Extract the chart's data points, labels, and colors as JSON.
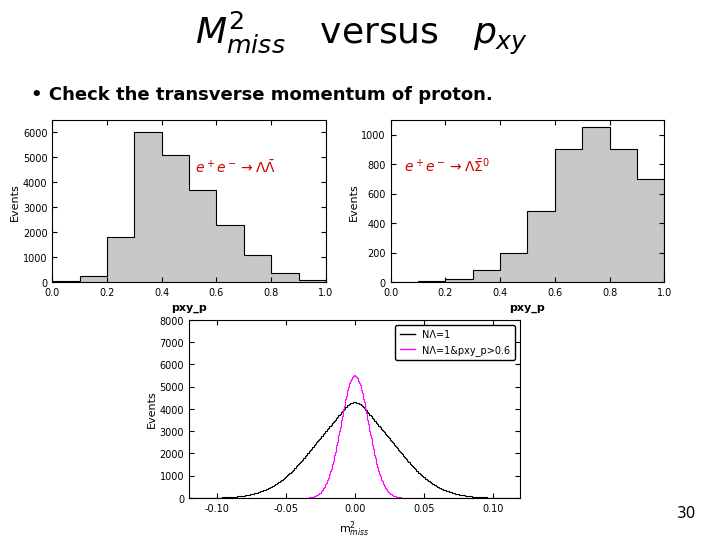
{
  "title_line1": "M",
  "title_sup": "2",
  "title_sub": "miss",
  "title_rest": " versus p",
  "title_sub2": "xy",
  "page_number": "30",
  "bg_color": "#ffffff",
  "bullet_text": "• Check the transverse momentum of proton.",
  "hist1_xlabel": "pxy_p",
  "hist1_ylabel": "Events",
  "hist1_xlim": [
    0.0,
    1.0
  ],
  "hist1_ylim": [
    0,
    6500
  ],
  "hist1_yticks": [
    0,
    1000,
    2000,
    3000,
    4000,
    5000,
    6000
  ],
  "hist1_edges": [
    0.0,
    0.1,
    0.2,
    0.3,
    0.4,
    0.5,
    0.6,
    0.7,
    0.8,
    0.9,
    1.0
  ],
  "hist1_values": [
    30,
    250,
    1800,
    6000,
    5100,
    3700,
    2300,
    1100,
    350,
    60
  ],
  "hist2_xlabel": "pxy_p",
  "hist2_ylabel": "Events",
  "hist2_xlim": [
    0.0,
    1.0
  ],
  "hist2_ylim": [
    0,
    1100
  ],
  "hist2_yticks": [
    0,
    200,
    400,
    600,
    800,
    1000
  ],
  "hist2_edges": [
    0.0,
    0.1,
    0.2,
    0.3,
    0.4,
    0.5,
    0.6,
    0.7,
    0.8,
    0.9,
    1.0
  ],
  "hist2_values": [
    0,
    5,
    20,
    80,
    200,
    480,
    900,
    1050,
    900,
    700
  ],
  "hist3_xlabel": "m$^2_{miss}$",
  "hist3_ylabel": "Events",
  "hist3_xlim": [
    -0.12,
    0.12
  ],
  "hist3_ylim": [
    0,
    8000
  ],
  "hist3_yticks": [
    0,
    1000,
    2000,
    3000,
    4000,
    5000,
    6000,
    7000,
    8000
  ],
  "hist3_xticks": [
    -0.1,
    -0.05,
    0.0,
    0.05,
    0.1
  ],
  "hist3_legend1": "NΛ=1",
  "hist3_legend2": "NΛ=1&pxy_p>0.6",
  "hist3_color_black": "#000000",
  "hist3_color_magenta": "#ff00ff",
  "annotation_color": "#cc0000",
  "hist_line_color": "#000000",
  "hist_fill_color": "#c8c8c8"
}
